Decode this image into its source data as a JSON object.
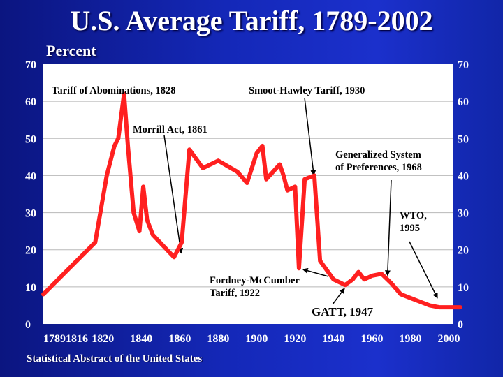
{
  "slide": {
    "title": "U.S. Average Tariff, 1789-2002",
    "source": "Statistical Abstract of the United States"
  },
  "chart_data": {
    "type": "line",
    "title": "U.S. Average Tariff, 1789-2002",
    "ylabel": "Percent",
    "xlabel": "",
    "xlim": [
      1789,
      2002
    ],
    "ylim": [
      0,
      70
    ],
    "grid": "horizontal",
    "x_ticks": [
      "1789",
      "1816",
      "1820",
      "1840",
      "1860",
      "1880",
      "1900",
      "1920",
      "1940",
      "1960",
      "1980",
      "2000"
    ],
    "y_ticks": [
      "0",
      "10",
      "20",
      "30",
      "40",
      "50",
      "60",
      "70"
    ],
    "colors": {
      "line": "#ff2020",
      "plot_bg": "#ffffff",
      "background": "#1428b8"
    },
    "series": [
      {
        "name": "",
        "x": [
          1789,
          1816,
          1822,
          1826,
          1828,
          1831,
          1833,
          1836,
          1839,
          1841,
          1843,
          1846,
          1857,
          1861,
          1865,
          1872,
          1880,
          1890,
          1895,
          1900,
          1903,
          1905,
          1912,
          1914,
          1916,
          1920,
          1922,
          1925,
          1930,
          1933,
          1940,
          1946,
          1950,
          1953,
          1956,
          1960,
          1965,
          1970,
          1975,
          1980,
          1985,
          1990,
          1995,
          2002,
          2006
        ],
        "y": [
          8,
          22,
          40,
          48,
          50,
          62,
          48,
          30,
          25,
          37,
          28,
          24,
          18,
          22,
          47,
          42,
          44,
          41,
          38,
          46,
          48,
          39,
          43,
          40,
          36,
          37,
          15,
          39,
          40,
          17,
          12,
          10.5,
          12,
          14,
          12,
          13,
          13.5,
          11,
          8,
          7,
          6,
          5,
          4.5,
          4.5,
          4.5
        ]
      }
    ],
    "annotations": [
      {
        "text": "Tariff of Abominations, 1828",
        "x": 1828,
        "y": 62
      },
      {
        "text": "Smoot-Hawley Tariff, 1930",
        "x": 1930,
        "y": 39
      },
      {
        "text": "Morrill Act, 1861",
        "x": 1861,
        "y": 18
      },
      {
        "text": "Generalized System",
        "text2": "of Preferences, 1968",
        "x": 1968,
        "y": 12
      },
      {
        "text": "WTO,",
        "text2": "1995",
        "x": 1995,
        "y": 6
      },
      {
        "text": "Fordney-McCumber",
        "text2": "Tariff, 1922",
        "x": 1922,
        "y": 15
      },
      {
        "text": "GATT, 1947",
        "x": 1947,
        "y": 10.5
      }
    ]
  }
}
